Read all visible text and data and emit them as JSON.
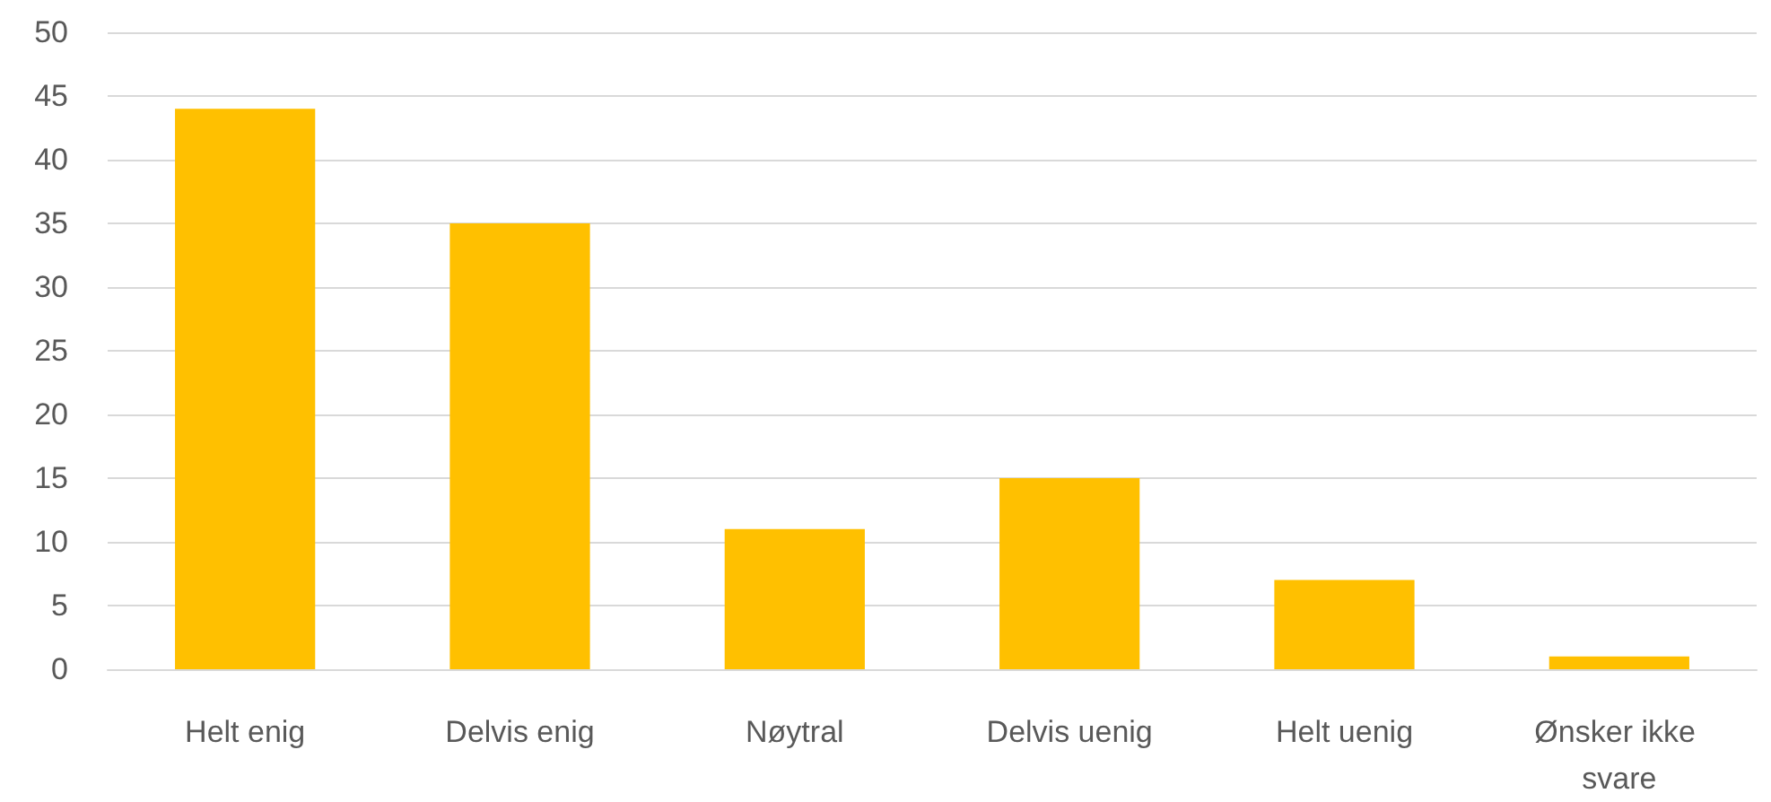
{
  "chart_data": {
    "type": "bar",
    "categories": [
      "Helt enig",
      "Delvis enig",
      "Nøytral",
      "Delvis uenig",
      "Helt uenig",
      "Ønsker ikke svare"
    ],
    "values": [
      44,
      35,
      11,
      15,
      7,
      1
    ],
    "color": "#ffc000",
    "ylim": [
      0,
      50
    ],
    "yticks": [
      0,
      5,
      10,
      15,
      20,
      25,
      30,
      35,
      40,
      45,
      50
    ],
    "grid": "y"
  }
}
